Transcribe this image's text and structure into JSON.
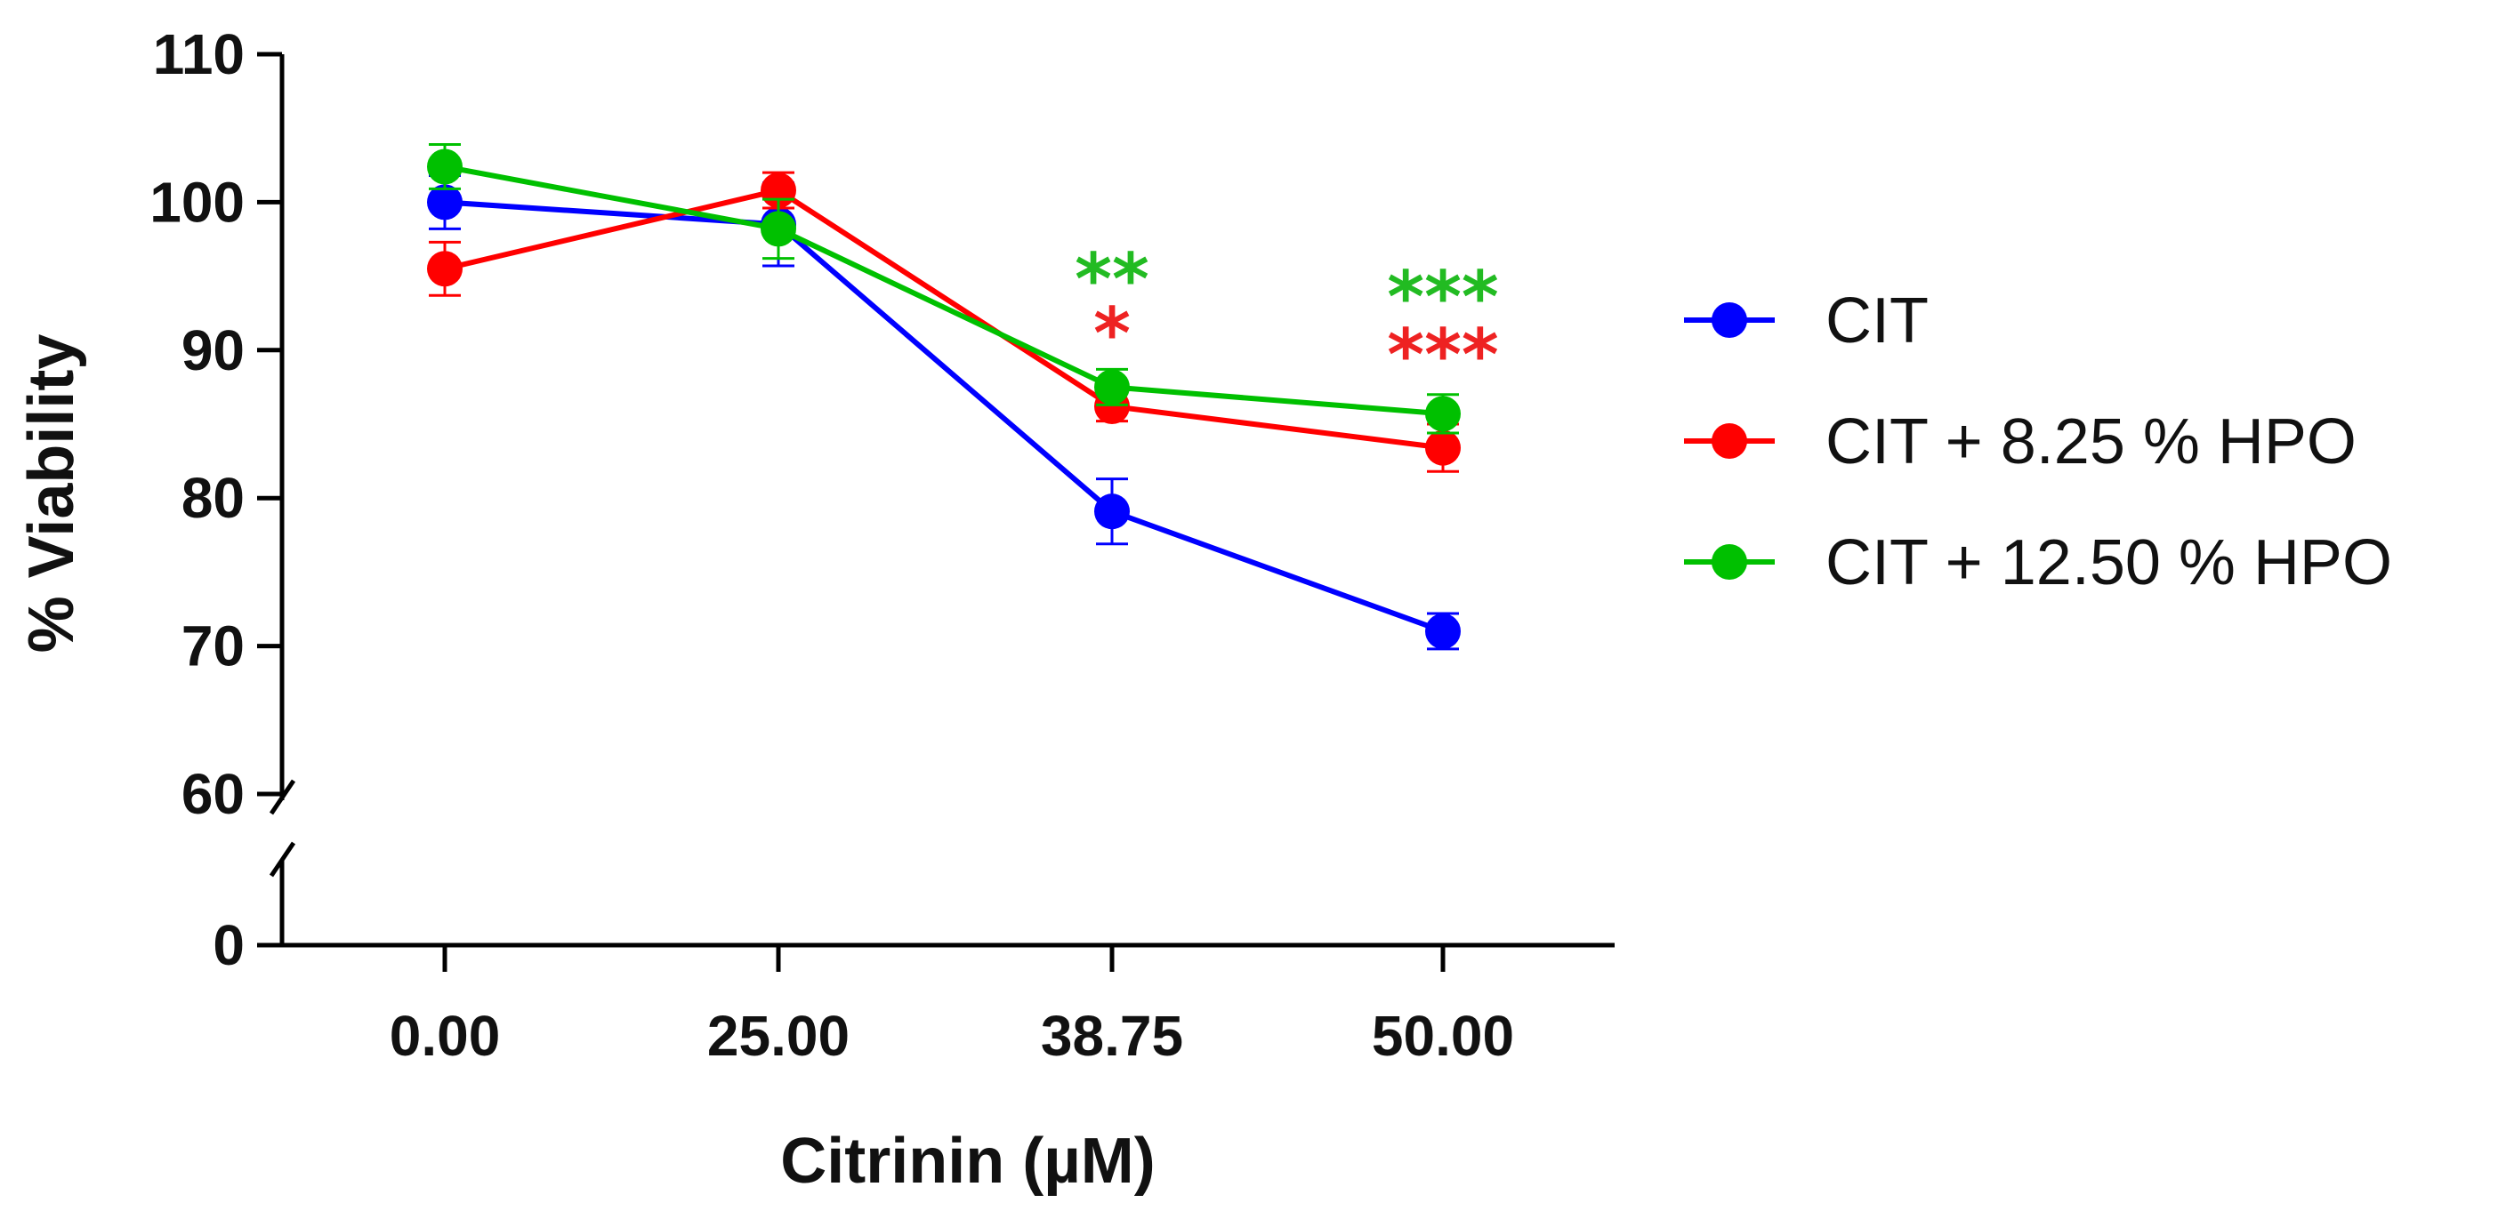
{
  "chart_data": {
    "type": "line",
    "xlabel": "Citrinin (µM)",
    "ylabel": "% Viability",
    "categories": [
      "0.00",
      "25.00",
      "38.75",
      "50.00"
    ],
    "y_axis": {
      "broken": true,
      "lower_segment": [
        0,
        0
      ],
      "upper_segment": [
        60,
        110
      ],
      "ticks": [
        0,
        60,
        70,
        80,
        90,
        100,
        110
      ],
      "tick_labels": [
        "0",
        "60",
        "70",
        "80",
        "90",
        "100",
        "110"
      ]
    },
    "series": [
      {
        "name": "CIT",
        "color": "#0000ff",
        "values": [
          100.0,
          98.5,
          79.1,
          71.0
        ],
        "errors": [
          1.8,
          2.8,
          2.2,
          1.2
        ]
      },
      {
        "name": "CIT + 8.25 % HPO",
        "color": "#ff0000",
        "values": [
          95.5,
          100.8,
          86.2,
          83.4
        ],
        "errors": [
          1.8,
          1.2,
          1.0,
          1.6
        ]
      },
      {
        "name": "CIT + 12.50 % HPO",
        "color": "#00c000",
        "values": [
          102.4,
          98.2,
          87.5,
          85.7
        ],
        "errors": [
          1.5,
          2.0,
          1.2,
          1.3
        ]
      }
    ],
    "annotations": [
      {
        "category": "38.75",
        "series": "CIT + 12.50 % HPO",
        "text": "**",
        "color": "#22bb22"
      },
      {
        "category": "38.75",
        "series": "CIT + 8.25 % HPO",
        "text": "*",
        "color": "#ee2222"
      },
      {
        "category": "50.00",
        "series": "CIT + 12.50 % HPO",
        "text": "***",
        "color": "#22bb22"
      },
      {
        "category": "50.00",
        "series": "CIT + 8.25 % HPO",
        "text": "***",
        "color": "#ee2222"
      }
    ],
    "legend_position": "right"
  }
}
